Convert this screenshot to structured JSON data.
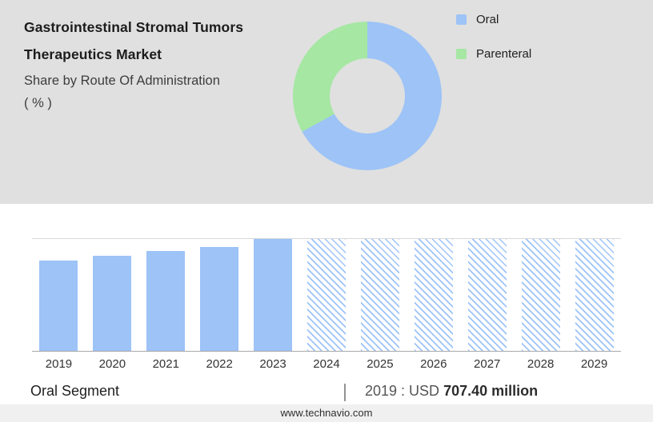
{
  "header": {
    "title_line1": "Gastrointestinal Stromal Tumors",
    "title_line2": "Therapeutics Market",
    "subtitle_line1": "Share by Route Of Administration",
    "subtitle_line2": "( % )"
  },
  "colors": {
    "oral": "#9dc3f7",
    "parenteral": "#a5e7a3",
    "top_background": "#e0e0e0"
  },
  "legend": [
    {
      "label": "Oral",
      "color": "#9dc3f7"
    },
    {
      "label": "Parenteral",
      "color": "#a5e7a3"
    }
  ],
  "chart_data": [
    {
      "type": "pie",
      "style": "donut",
      "labels": [
        "Oral",
        "Parenteral"
      ],
      "values": [
        67,
        33
      ],
      "colors": [
        "#9dc3f7",
        "#a5e7a3"
      ],
      "legend_position": "right",
      "title": "Share by Route Of Administration ( % )"
    },
    {
      "type": "bar",
      "categories": [
        "2019",
        "2020",
        "2021",
        "2022",
        "2023",
        "2024",
        "2025",
        "2026",
        "2027",
        "2028",
        "2029"
      ],
      "values": [
        81,
        85,
        89,
        93,
        100,
        100,
        100,
        100,
        100,
        100,
        100
      ],
      "ylim": [
        0,
        100
      ],
      "value_note": "relative bar heights, no value axis shown",
      "forecast_start_index": 5,
      "forecast_style": "diagonal-hatch",
      "bar_color": "#9dc3f7",
      "grid": false,
      "annotations": [
        "2019 : USD 707.40 million"
      ]
    }
  ],
  "footer": {
    "segment_label": "Oral Segment",
    "separator": "|",
    "value_prefix": "2019 : USD",
    "value_bold": "707.40 million",
    "website": "www.technavio.com"
  }
}
